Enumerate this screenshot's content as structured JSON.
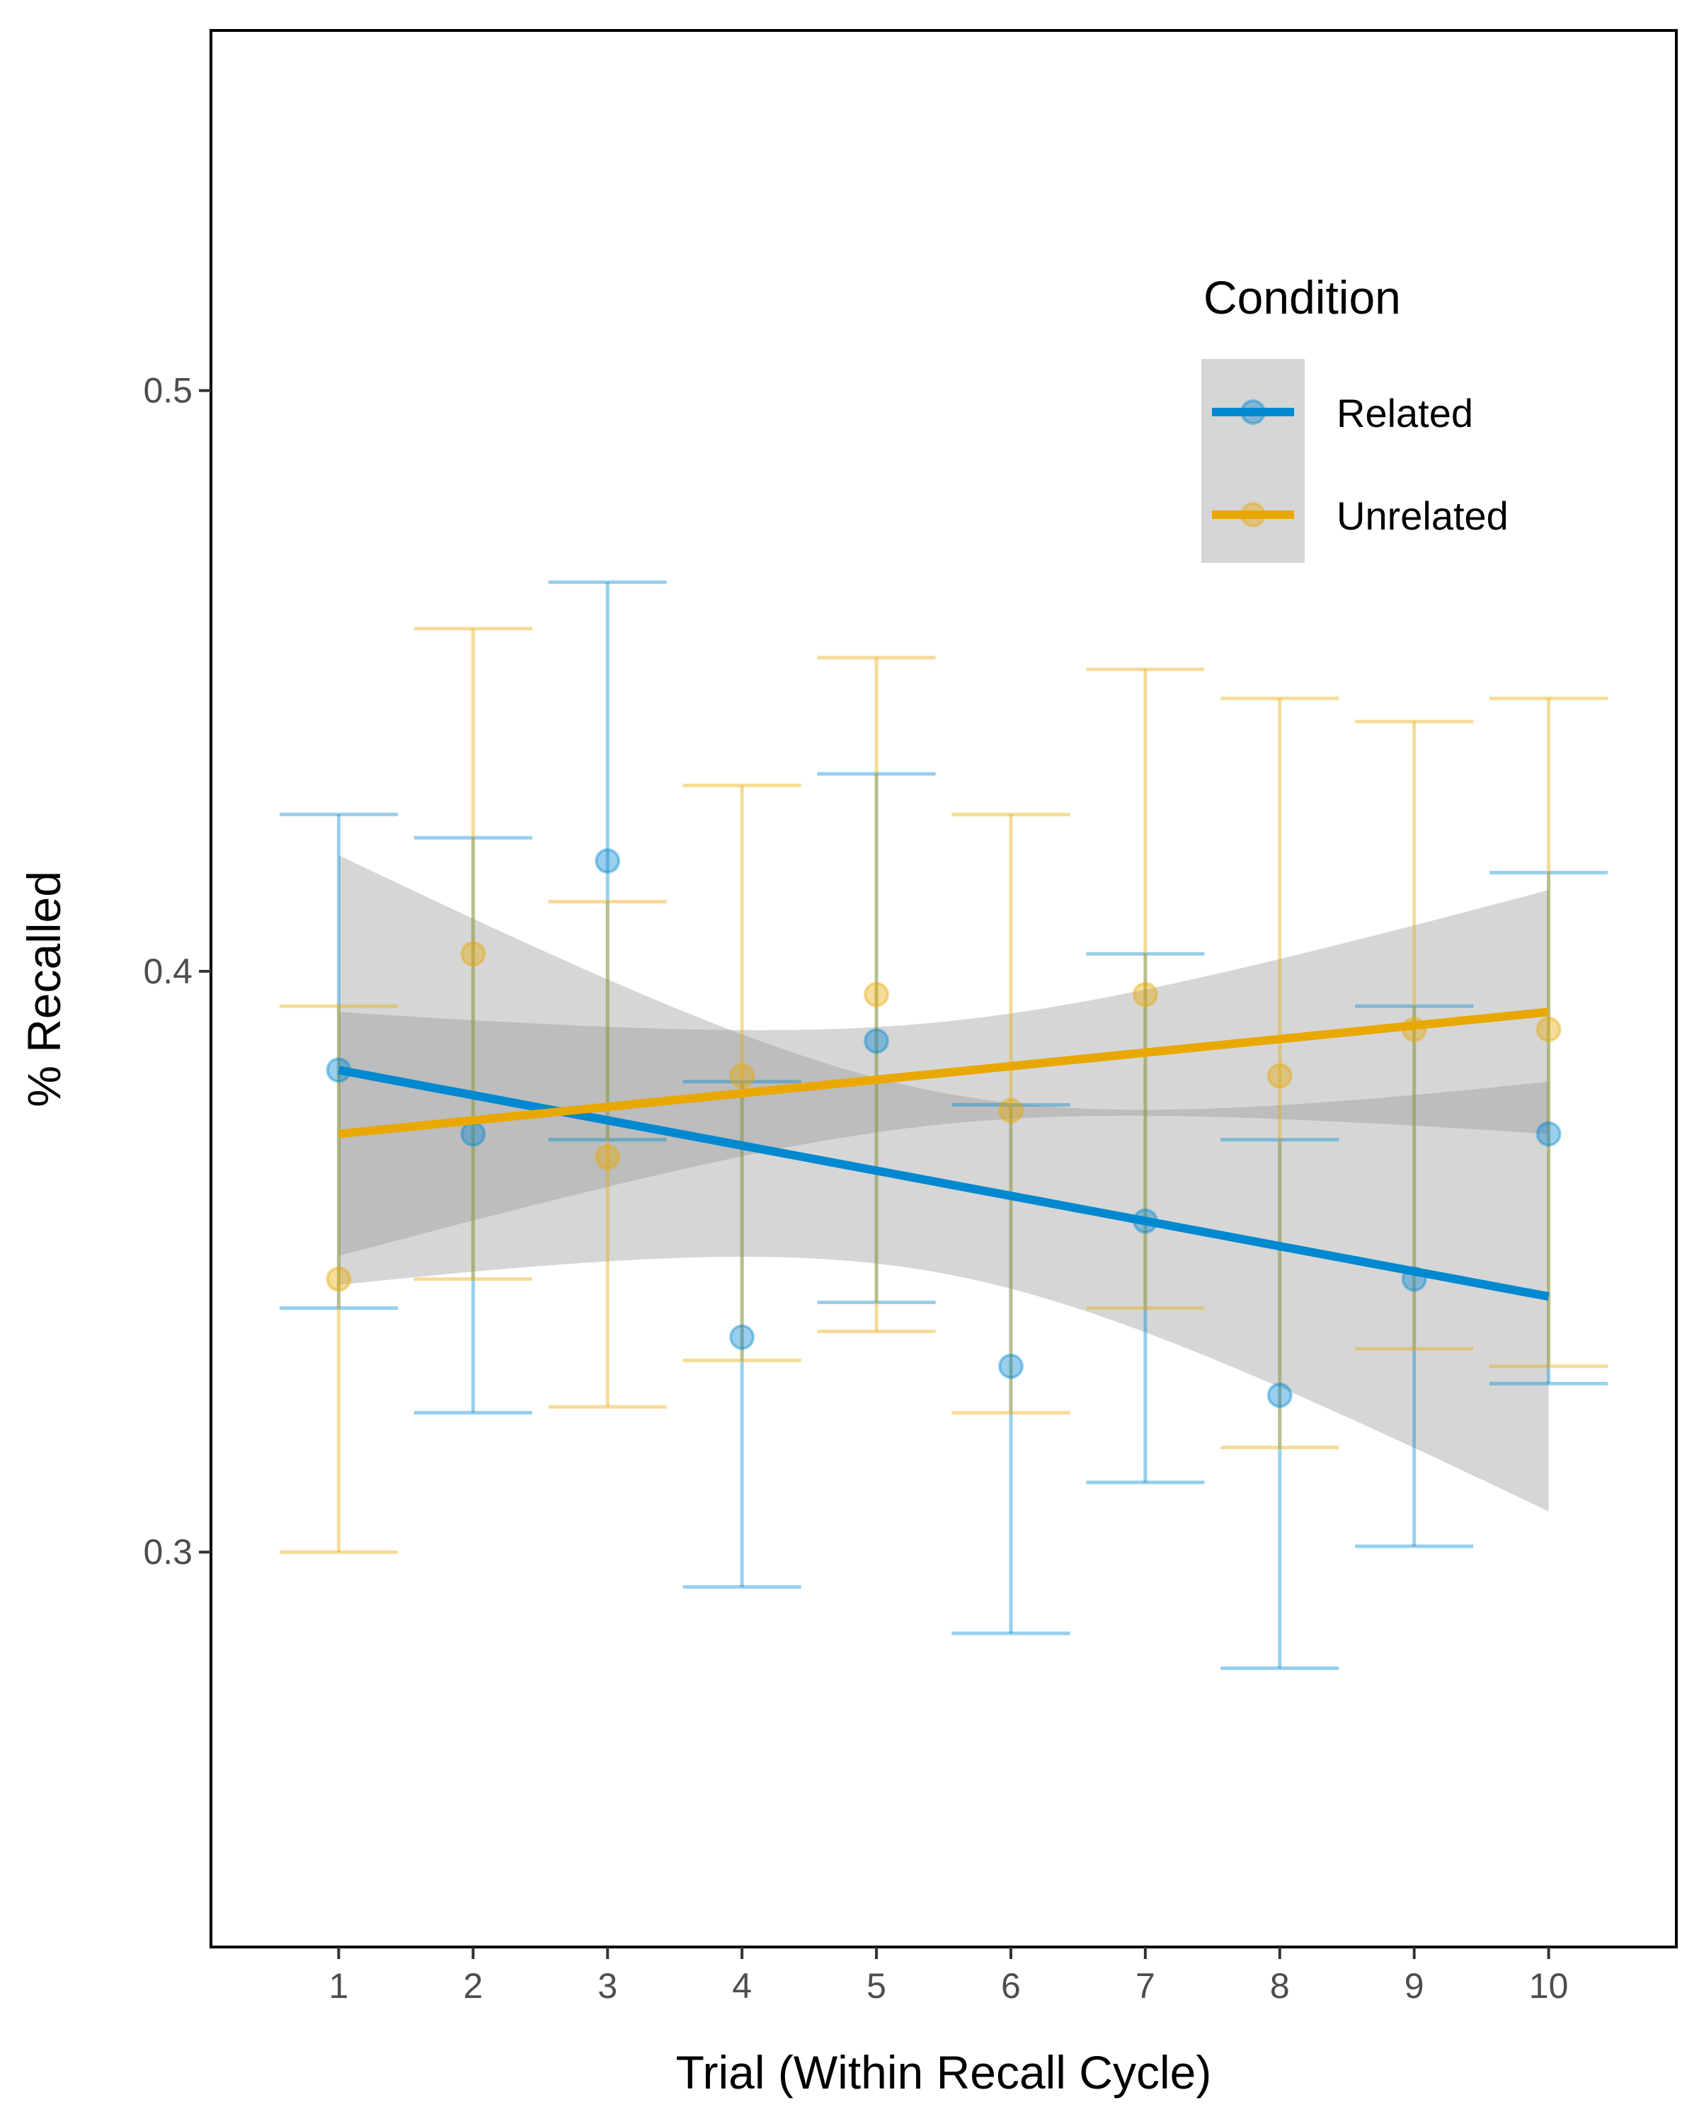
{
  "chart_data": {
    "type": "line",
    "xlabel": "Trial (Within Recall Cycle)",
    "ylabel": "% Recalled",
    "x": [
      1,
      2,
      3,
      4,
      5,
      6,
      7,
      8,
      9,
      10
    ],
    "x_ticks": [
      "1",
      "2",
      "3",
      "4",
      "5",
      "6",
      "7",
      "8",
      "9",
      "10"
    ],
    "y_ticks": [
      0.3,
      0.4,
      0.5
    ],
    "y_tick_labels": [
      "0.3",
      "0.4",
      "0.5"
    ],
    "xlim": [
      0.05,
      10.95
    ],
    "ylim": [
      0.232,
      0.562
    ],
    "grid": false,
    "legend": {
      "title": "Condition",
      "position": "top-right"
    },
    "series": [
      {
        "name": "Related",
        "color": "#0088d1",
        "mean": [
          0.383,
          0.372,
          0.419,
          0.337,
          0.388,
          0.332,
          0.357,
          0.327,
          0.347,
          0.372
        ],
        "ci_low": [
          0.342,
          0.324,
          0.371,
          0.294,
          0.343,
          0.286,
          0.312,
          0.28,
          0.301,
          0.329
        ],
        "ci_high": [
          0.427,
          0.423,
          0.467,
          0.381,
          0.434,
          0.377,
          0.403,
          0.371,
          0.394,
          0.417
        ],
        "fit": {
          "start": 0.383,
          "end": 0.344,
          "band_low_start": 0.346,
          "band_low_end": 0.307,
          "band_high_start": 0.42,
          "band_high_end": 0.381
        }
      },
      {
        "name": "Unrelated",
        "color": "#e9a800",
        "mean": [
          0.347,
          0.403,
          0.368,
          0.382,
          0.396,
          0.376,
          0.396,
          0.382,
          0.39,
          0.39
        ],
        "ci_low": [
          0.3,
          0.347,
          0.325,
          0.333,
          0.338,
          0.324,
          0.342,
          0.318,
          0.335,
          0.332
        ],
        "ci_high": [
          0.394,
          0.459,
          0.412,
          0.432,
          0.454,
          0.427,
          0.452,
          0.447,
          0.443,
          0.447
        ],
        "fit": {
          "start": 0.372,
          "end": 0.393,
          "band_low_start": 0.352,
          "band_low_end": 0.372,
          "band_high_start": 0.393,
          "band_high_end": 0.415
        }
      }
    ]
  }
}
